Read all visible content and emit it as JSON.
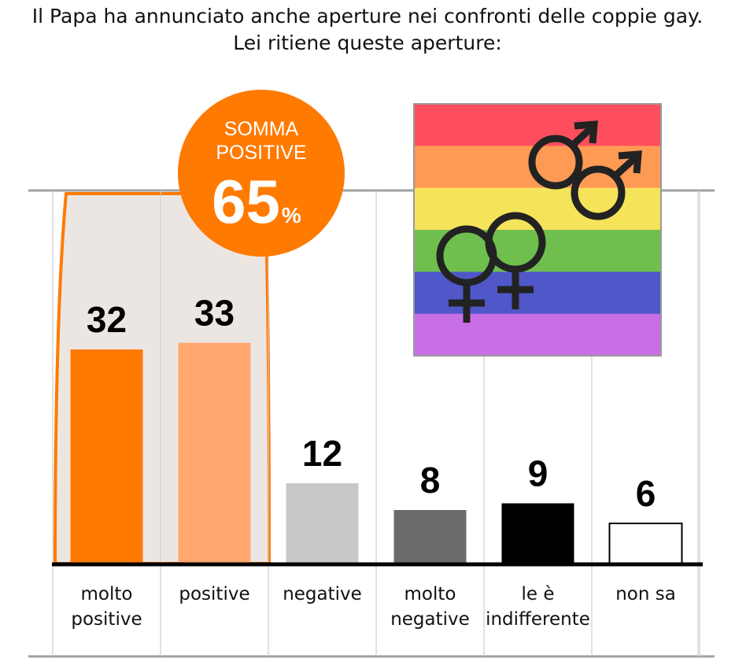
{
  "title_line1": "Il Papa ha annunciato anche aperture nei confronti delle coppie gay.",
  "title_line2": "Lei ritiene queste aperture:",
  "badge": {
    "line1": "SOMMA",
    "line2": "POSITIVE",
    "value": "65",
    "unit": "%"
  },
  "colors": {
    "orange": "#ff7a00",
    "light_orange": "#ffa76f",
    "highlight_bg": "#ece6e3",
    "grid": "#a0a0a0",
    "flag": [
      "#ff4f5e",
      "#ff9a55",
      "#f5e35a",
      "#6fbf4f",
      "#4f57c9",
      "#c86fe8"
    ]
  },
  "picture_icons": [
    "rainbow-flag",
    "male-symbol",
    "female-symbol"
  ],
  "chart_data": {
    "type": "bar",
    "categories": [
      [
        "molto",
        "positive"
      ],
      [
        "positive"
      ],
      [
        "negative"
      ],
      [
        "molto",
        "negative"
      ],
      [
        "le è",
        "indifferente"
      ],
      [
        "non sa"
      ]
    ],
    "values": [
      32,
      33,
      12,
      8,
      9,
      6
    ],
    "bar_colors": [
      "#ff7a00",
      "#ffa76f",
      "#c8c8c8",
      "#6b6b6b",
      "#000000",
      "#ffffff"
    ],
    "unit": "%",
    "grid": true
  }
}
